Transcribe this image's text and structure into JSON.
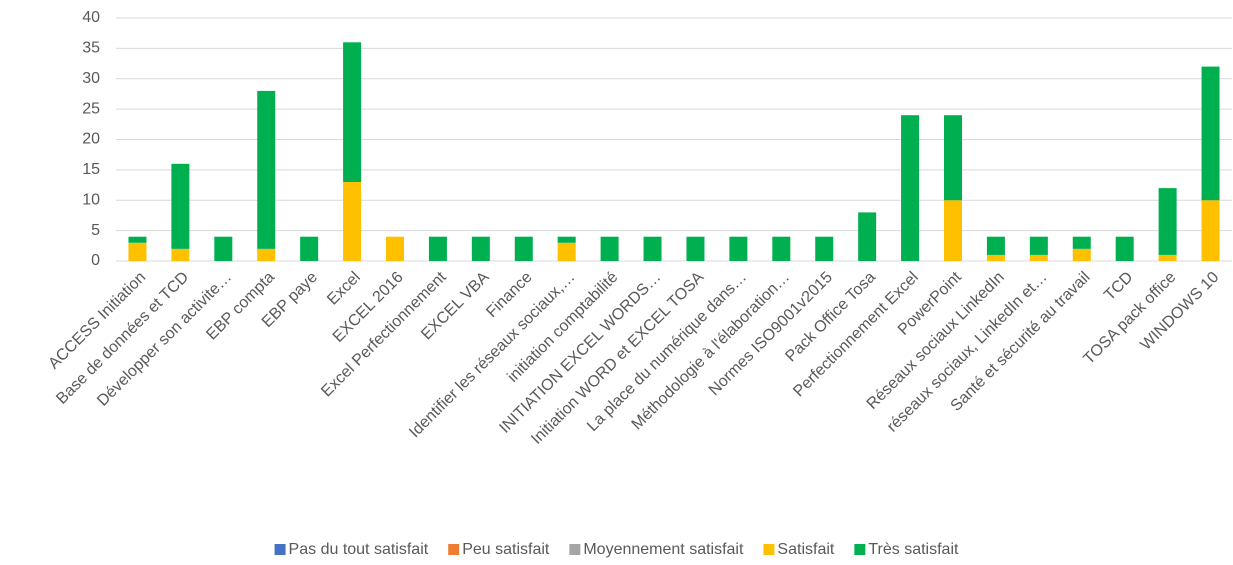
{
  "chart_data": {
    "type": "stacked_bar",
    "categories": [
      "ACCESS Initiation",
      "Base de données et TCD",
      "Développer son activite…",
      "EBP compta",
      "EBP paye",
      "Excel",
      "EXCEL 2016",
      "Excel Perfectionnement",
      "EXCEL VBA",
      "Finance",
      "Identifier les réseaux sociaux,…",
      "initiation comptabilité",
      "INITIATION EXCEL WORDS…",
      "Initiation WORD et EXCEL TOSA",
      "La place du numérique dans…",
      "Méthodologie à l'élaboration…",
      "Normes ISO9001v2015",
      "Pack Office Tosa",
      "Perfectionnement Excel",
      "PowerPoint",
      "Réseaux sociaux LinkedIn",
      "réseaux sociaux, LinkedIn et…",
      "Santé et sécurité au travail",
      "TCD",
      "TOSA pack office",
      "WINDOWS 10"
    ],
    "series": [
      {
        "name": "Pas du tout satisfait",
        "color": "#4472c4",
        "values": [
          0,
          0,
          0,
          0,
          0,
          0,
          0,
          0,
          0,
          0,
          0,
          0,
          0,
          0,
          0,
          0,
          0,
          0,
          0,
          0,
          0,
          0,
          0,
          0,
          0,
          0
        ]
      },
      {
        "name": "Peu satisfait",
        "color": "#ed7d31",
        "values": [
          0,
          0,
          0,
          0,
          0,
          0,
          0,
          0,
          0,
          0,
          0,
          0,
          0,
          0,
          0,
          0,
          0,
          0,
          0,
          0,
          0,
          0,
          0,
          0,
          0,
          0
        ]
      },
      {
        "name": "Moyennement satisfait",
        "color": "#a5a5a5",
        "values": [
          0,
          0,
          0,
          0,
          0,
          0,
          0,
          0,
          0,
          0,
          0,
          0,
          0,
          0,
          0,
          0,
          0,
          0,
          0,
          0,
          0,
          0,
          0,
          0,
          0,
          0
        ]
      },
      {
        "name": "Satisfait",
        "color": "#ffc000",
        "values": [
          3,
          2,
          0,
          2,
          0,
          13,
          4,
          0,
          0,
          0,
          3,
          0,
          0,
          0,
          0,
          0,
          0,
          0,
          0,
          10,
          1,
          1,
          2,
          0,
          1,
          10
        ]
      },
      {
        "name": "Très satisfait",
        "color": "#00b050",
        "values": [
          1,
          14,
          4,
          26,
          4,
          23,
          0,
          4,
          4,
          4,
          1,
          4,
          4,
          4,
          4,
          4,
          4,
          8,
          24,
          14,
          3,
          3,
          2,
          4,
          11,
          22
        ]
      }
    ],
    "ylim": [
      0,
      40
    ],
    "yticks": [
      0,
      5,
      10,
      15,
      20,
      25,
      30,
      35,
      40
    ],
    "grid": true,
    "legend": "bottom"
  }
}
